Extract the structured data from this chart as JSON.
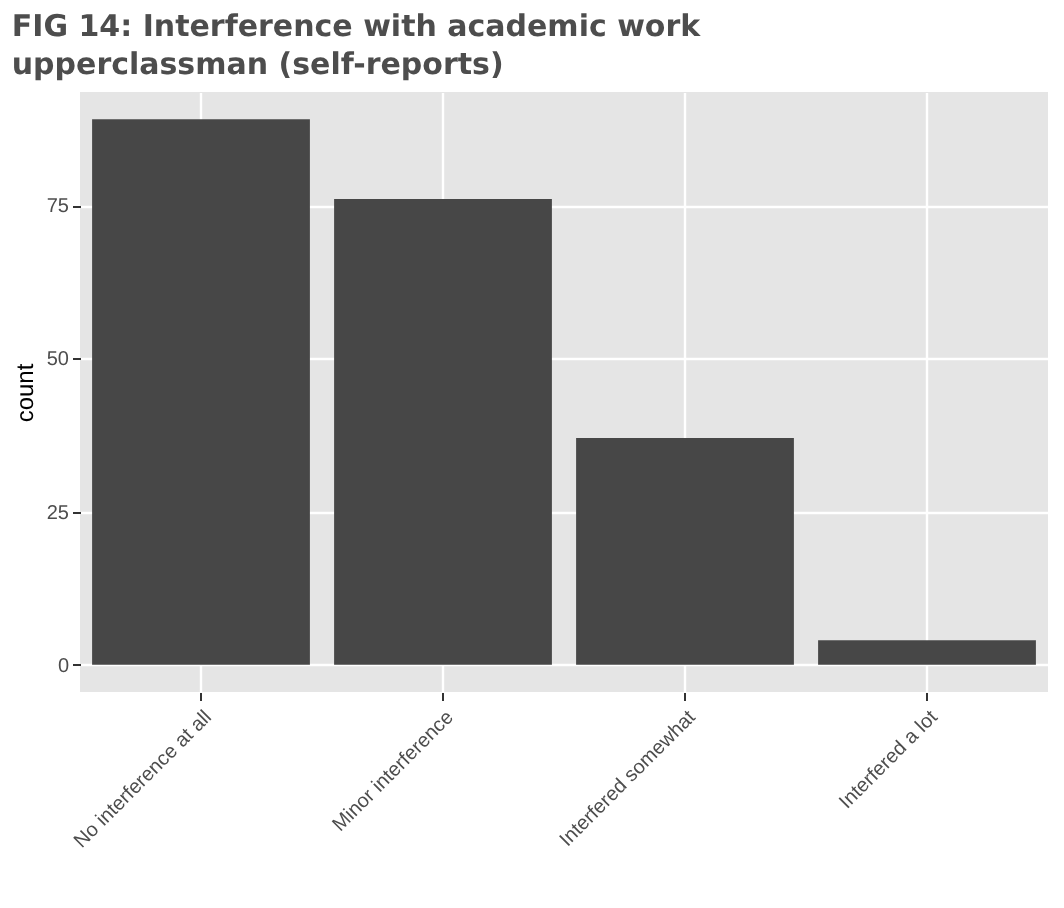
{
  "chart_data": {
    "type": "bar",
    "title": "FIG 14: Interference with academic work\nupperclassman (self-reports)",
    "ylabel": "count",
    "categories": [
      "No interference at all",
      "Minor interference",
      "Interfered somewhat",
      "Interfered a lot"
    ],
    "values": [
      89,
      76,
      37,
      4
    ],
    "color": "#474747",
    "ylim": [
      -4.45,
      93.45
    ],
    "yticks": [
      0,
      25,
      50,
      75
    ],
    "grid": true
  }
}
